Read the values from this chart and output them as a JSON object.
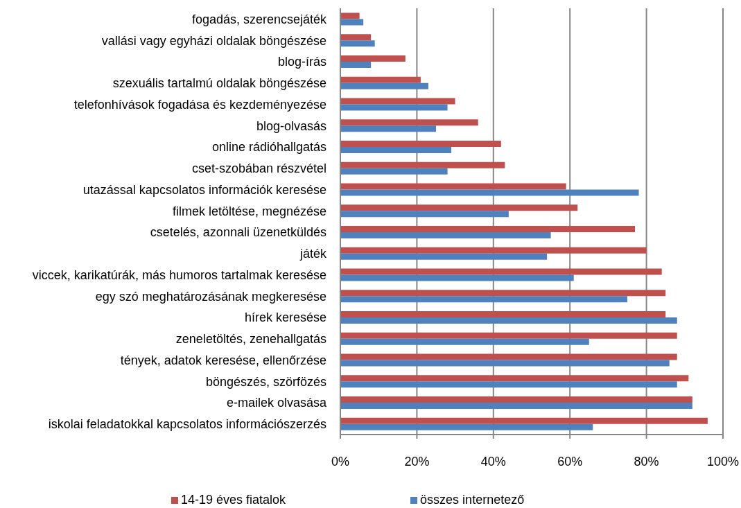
{
  "chart_data": {
    "type": "bar",
    "orientation": "horizontal",
    "categories": [
      "fogadás, szerencsejáték",
      "vallási vagy egyházi oldalak böngészése",
      "blog-írás",
      "szexuális tartalmú oldalak böngészése",
      "telefonhívások fogadása és kezdeményezése",
      "blog-olvasás",
      "online rádióhallgatás",
      "cset-szobában részvétel",
      "utazással kapcsolatos információk keresése",
      "filmek letöltése, megnézése",
      "csetelés, azonnali üzenetküldés",
      "játék",
      "viccek, karikatúrák, más humoros tartalmak keresése",
      "egy szó meghatározásának megkeresése",
      "hírek keresése",
      "zeneletöltés, zenehallgatás",
      "tények, adatok keresése, ellenőrzése",
      "böngészés, szörfözés",
      "e-mailek olvasása",
      "iskolai feladatokkal kapcsolatos információszerzés"
    ],
    "series": [
      {
        "name": "14-19 éves fiatalok",
        "color": "#c0504d",
        "values": [
          5,
          8,
          17,
          21,
          30,
          36,
          42,
          43,
          59,
          62,
          77,
          80,
          84,
          85,
          85,
          88,
          88,
          91,
          92,
          96
        ]
      },
      {
        "name": "összes internetező",
        "color": "#4f81bd",
        "values": [
          6,
          9,
          8,
          23,
          28,
          25,
          29,
          28,
          78,
          44,
          55,
          54,
          61,
          75,
          88,
          65,
          86,
          88,
          92,
          66
        ]
      }
    ],
    "xlim": [
      0,
      100
    ],
    "xticks": [
      {
        "value": 0,
        "label": "0%"
      },
      {
        "value": 20,
        "label": "20%"
      },
      {
        "value": 40,
        "label": "40%"
      },
      {
        "value": 60,
        "label": "60%"
      },
      {
        "value": 80,
        "label": "80%"
      },
      {
        "value": 100,
        "label": "100%"
      }
    ],
    "grid": "x",
    "legend": "bottom"
  }
}
